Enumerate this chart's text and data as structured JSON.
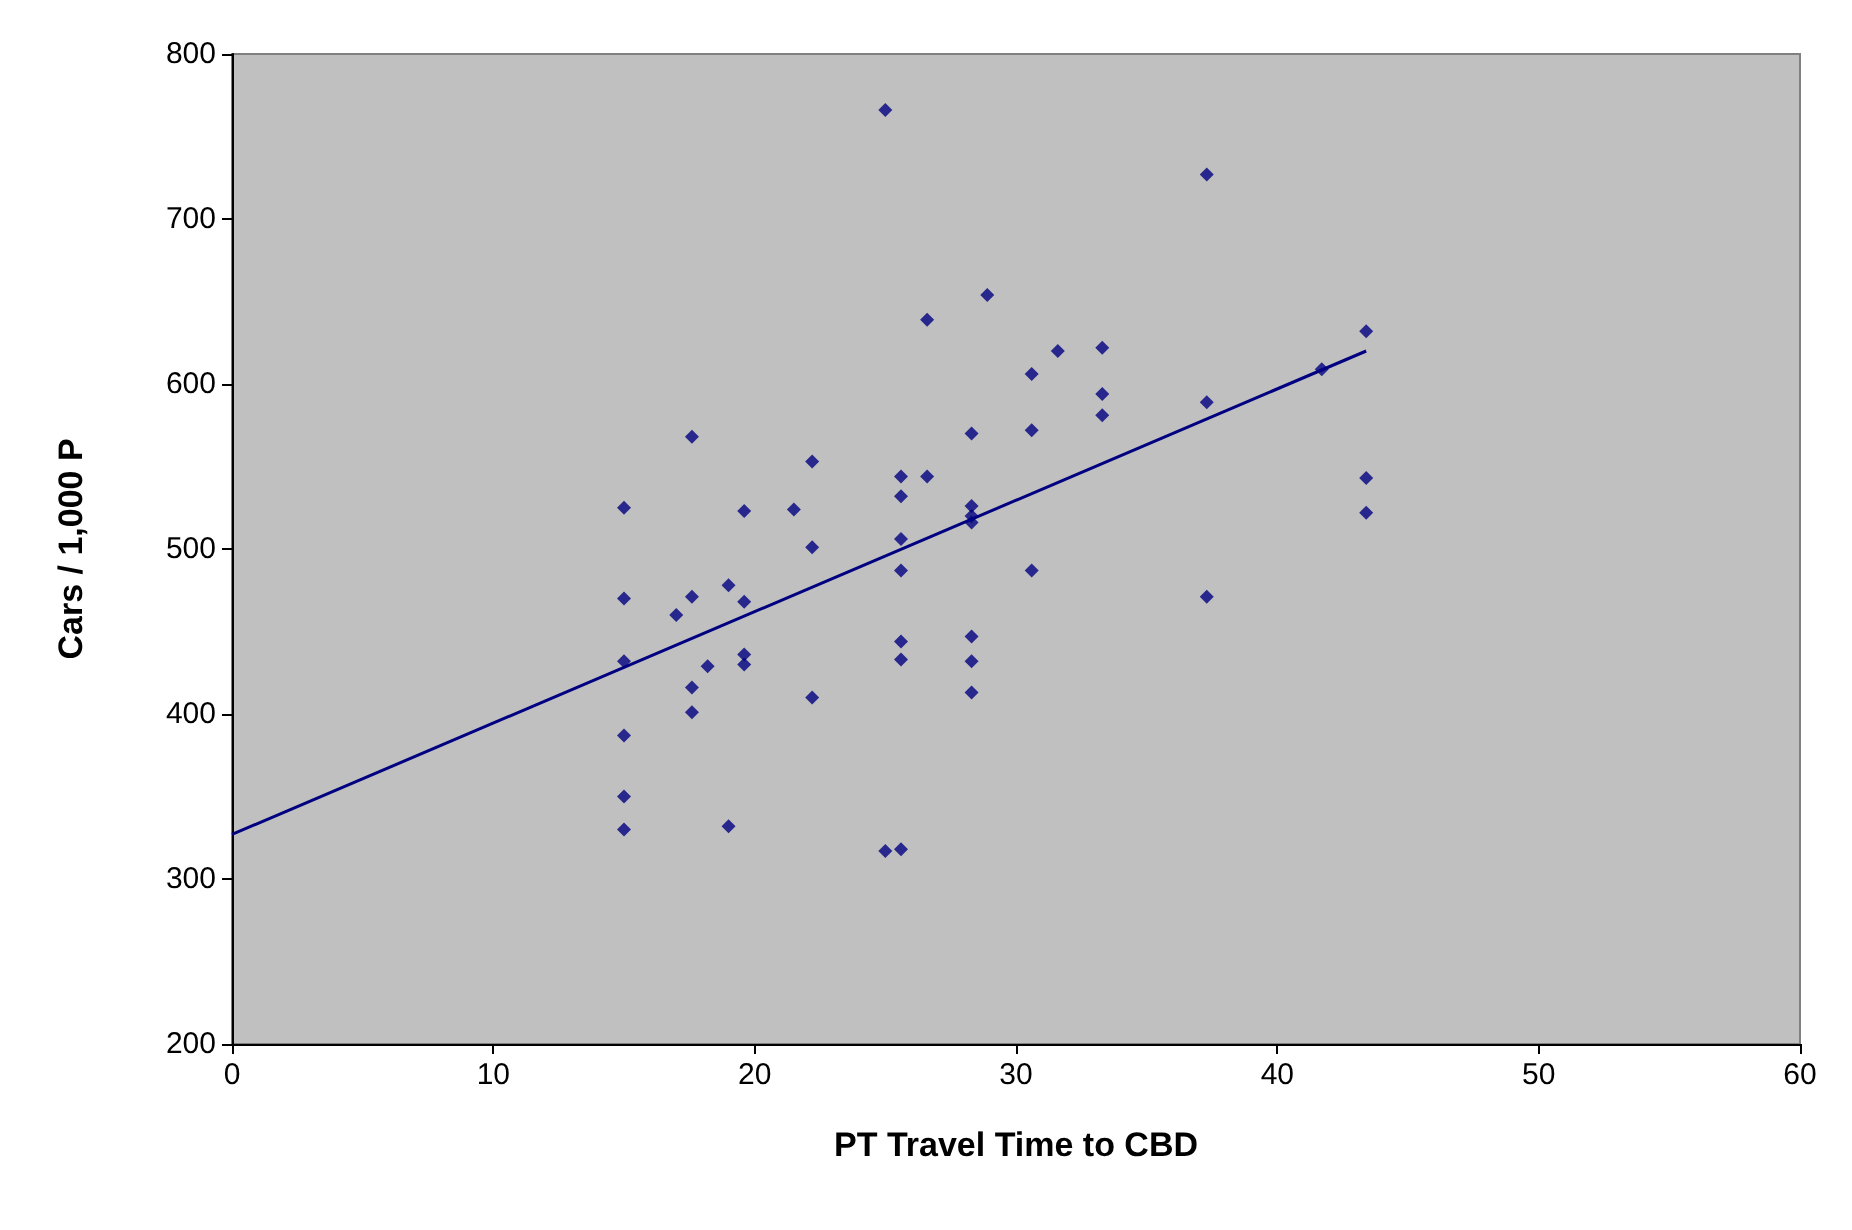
{
  "chart_data": {
    "type": "scatter",
    "xlabel": "PT Travel Time to CBD",
    "ylabel": "Cars / 1,000 P",
    "xlim": [
      0,
      60
    ],
    "xticks": [
      0,
      10,
      20,
      30,
      40,
      50,
      60
    ],
    "ylim": [
      200,
      800
    ],
    "yticks": [
      200,
      300,
      400,
      500,
      600,
      700,
      800
    ],
    "grid": false,
    "marker": "diamond",
    "series": [
      {
        "color": "#000080",
        "x": [
          15,
          15,
          15,
          15,
          15,
          15,
          17,
          17.6,
          17.6,
          17.6,
          17.6,
          18.2,
          19,
          19,
          19.6,
          19.6,
          19.6,
          19.6,
          21.5,
          22.2,
          22.2,
          22.2,
          25,
          25,
          25.6,
          25.6,
          25.6,
          25.6,
          25.6,
          25.6,
          25.6,
          26.6,
          26.6,
          28.3,
          28.3,
          28.3,
          28.3,
          28.3,
          28.3,
          28.3,
          28.9,
          30.6,
          30.6,
          30.6,
          31.6,
          33.3,
          33.3,
          33.3,
          37.3,
          37.3,
          37.3,
          41.7,
          43.4,
          43.4,
          43.4
        ],
        "values": [
          525,
          470,
          432,
          387,
          350,
          330,
          460,
          568,
          471,
          416,
          401,
          429,
          478,
          332,
          523,
          468,
          436,
          430,
          524,
          553,
          501,
          410,
          766,
          317,
          544,
          532,
          506,
          487,
          444,
          433,
          318,
          639,
          544,
          570,
          526,
          520,
          516,
          447,
          432,
          413,
          654,
          606,
          572,
          487,
          620,
          622,
          594,
          581,
          727,
          589,
          471,
          609,
          632,
          543,
          522
        ]
      },
      {
        "type": "line",
        "color": "#000080",
        "x": [
          0,
          43.4
        ],
        "values": [
          327,
          620
        ],
        "marker": "none",
        "line_style": "solid"
      }
    ]
  }
}
